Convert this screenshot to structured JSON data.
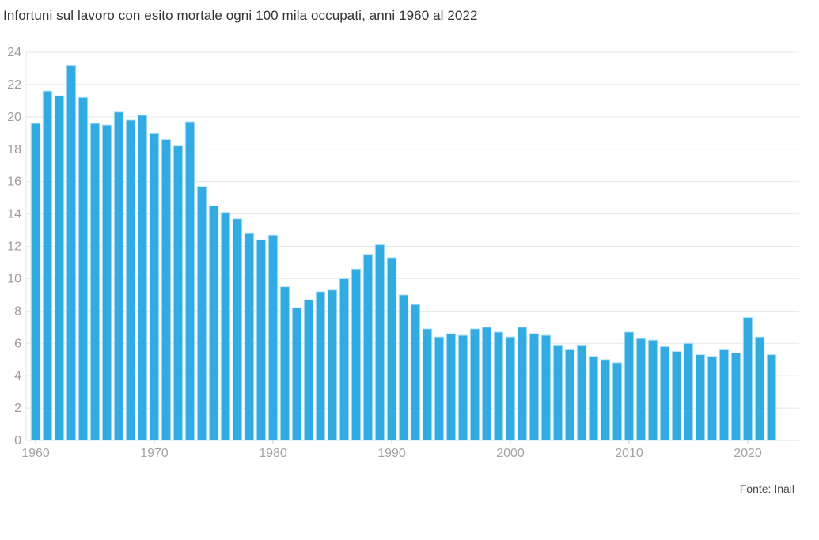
{
  "title": "Infortuni sul lavoro con esito mortale ogni 100 mila occupati, anni 1960 al 2022",
  "source": "Fonte: Inail",
  "colors": {
    "bar": "#31ABE2",
    "bar_edge": "#BCE4F7",
    "grid": "#E8E8E8",
    "baseline": "#E0E0E0",
    "tick_label": "#9B9B9B",
    "x_tick_label": "#A3A3A3",
    "tick_mark": "#CCCCCC",
    "title": "#333333",
    "source": "#4A4A4A"
  },
  "chart_data": {
    "type": "bar",
    "title": "Infortuni sul lavoro con esito mortale ogni 100 mila occupati, anni 1960 al 2022",
    "xlabel": "",
    "ylabel": "",
    "x": [
      1960,
      1961,
      1962,
      1963,
      1964,
      1965,
      1966,
      1967,
      1968,
      1969,
      1970,
      1971,
      1972,
      1973,
      1974,
      1975,
      1976,
      1977,
      1978,
      1979,
      1980,
      1981,
      1982,
      1983,
      1984,
      1985,
      1986,
      1987,
      1988,
      1989,
      1990,
      1991,
      1992,
      1993,
      1994,
      1995,
      1996,
      1997,
      1998,
      1999,
      2000,
      2001,
      2002,
      2003,
      2004,
      2005,
      2006,
      2007,
      2008,
      2009,
      2010,
      2011,
      2012,
      2013,
      2014,
      2015,
      2016,
      2017,
      2018,
      2019,
      2020,
      2021,
      2022
    ],
    "values": [
      19.6,
      21.6,
      21.3,
      23.2,
      21.2,
      19.6,
      19.5,
      20.3,
      19.8,
      20.1,
      19.0,
      18.6,
      18.2,
      19.7,
      15.7,
      14.5,
      14.1,
      13.7,
      12.8,
      12.4,
      12.7,
      9.5,
      8.2,
      8.7,
      9.2,
      9.3,
      10.0,
      10.6,
      11.5,
      12.1,
      11.3,
      9.0,
      8.4,
      6.9,
      6.4,
      6.6,
      6.5,
      6.9,
      7.0,
      6.7,
      6.4,
      7.0,
      6.6,
      6.5,
      5.9,
      5.6,
      5.9,
      5.2,
      5.0,
      4.8,
      6.7,
      6.3,
      6.2,
      5.8,
      5.5,
      6.0,
      5.3,
      5.2,
      5.6,
      5.4,
      7.6,
      6.4,
      5.3
    ],
    "ylim": [
      0,
      24
    ],
    "ytick_step": 2,
    "xticks": [
      1960,
      1970,
      1980,
      1990,
      2000,
      2010,
      2020
    ],
    "grid": true,
    "legend": false,
    "source": "Fonte: Inail"
  }
}
